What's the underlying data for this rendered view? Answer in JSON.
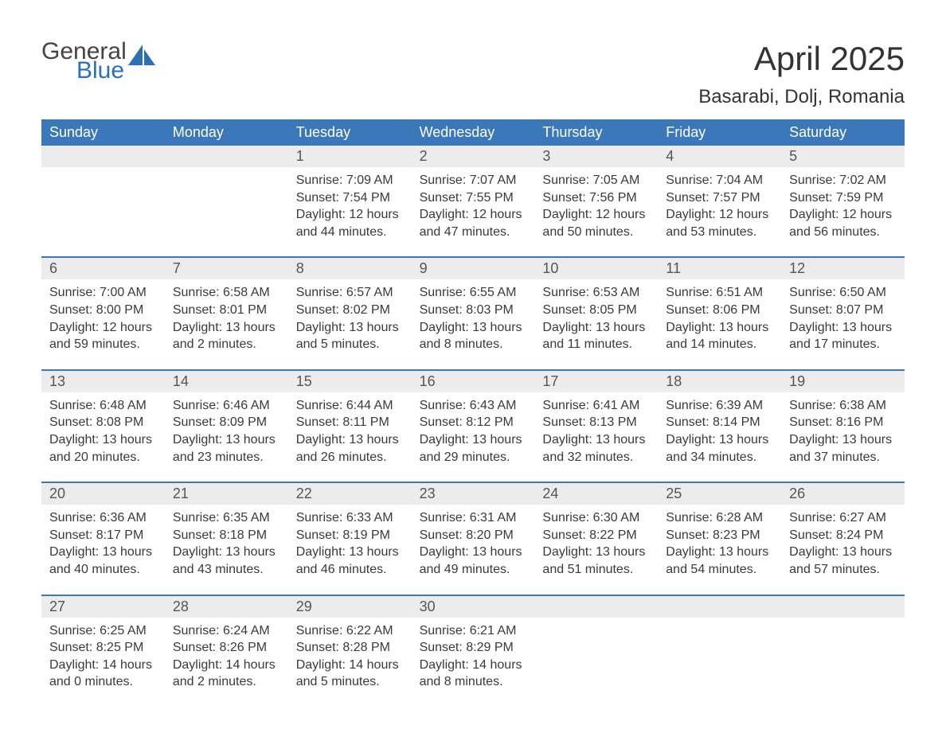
{
  "logo": {
    "general": "General",
    "blue": "Blue"
  },
  "title": "April 2025",
  "location": "Basarabi, Dolj, Romania",
  "colors": {
    "header_bg": "#3a78b9",
    "header_text": "#ffffff",
    "date_row_bg": "#ececec",
    "body_text": "#3a3a3a",
    "accent": "#2d6fb5",
    "page_bg": "#ffffff"
  },
  "day_labels": [
    "Sunday",
    "Monday",
    "Tuesday",
    "Wednesday",
    "Thursday",
    "Friday",
    "Saturday"
  ],
  "weeks": [
    [
      {
        "date": "",
        "sunrise": "",
        "sunset": "",
        "daylight1": "",
        "daylight2": ""
      },
      {
        "date": "",
        "sunrise": "",
        "sunset": "",
        "daylight1": "",
        "daylight2": ""
      },
      {
        "date": "1",
        "sunrise": "Sunrise: 7:09 AM",
        "sunset": "Sunset: 7:54 PM",
        "daylight1": "Daylight: 12 hours",
        "daylight2": "and 44 minutes."
      },
      {
        "date": "2",
        "sunrise": "Sunrise: 7:07 AM",
        "sunset": "Sunset: 7:55 PM",
        "daylight1": "Daylight: 12 hours",
        "daylight2": "and 47 minutes."
      },
      {
        "date": "3",
        "sunrise": "Sunrise: 7:05 AM",
        "sunset": "Sunset: 7:56 PM",
        "daylight1": "Daylight: 12 hours",
        "daylight2": "and 50 minutes."
      },
      {
        "date": "4",
        "sunrise": "Sunrise: 7:04 AM",
        "sunset": "Sunset: 7:57 PM",
        "daylight1": "Daylight: 12 hours",
        "daylight2": "and 53 minutes."
      },
      {
        "date": "5",
        "sunrise": "Sunrise: 7:02 AM",
        "sunset": "Sunset: 7:59 PM",
        "daylight1": "Daylight: 12 hours",
        "daylight2": "and 56 minutes."
      }
    ],
    [
      {
        "date": "6",
        "sunrise": "Sunrise: 7:00 AM",
        "sunset": "Sunset: 8:00 PM",
        "daylight1": "Daylight: 12 hours",
        "daylight2": "and 59 minutes."
      },
      {
        "date": "7",
        "sunrise": "Sunrise: 6:58 AM",
        "sunset": "Sunset: 8:01 PM",
        "daylight1": "Daylight: 13 hours",
        "daylight2": "and 2 minutes."
      },
      {
        "date": "8",
        "sunrise": "Sunrise: 6:57 AM",
        "sunset": "Sunset: 8:02 PM",
        "daylight1": "Daylight: 13 hours",
        "daylight2": "and 5 minutes."
      },
      {
        "date": "9",
        "sunrise": "Sunrise: 6:55 AM",
        "sunset": "Sunset: 8:03 PM",
        "daylight1": "Daylight: 13 hours",
        "daylight2": "and 8 minutes."
      },
      {
        "date": "10",
        "sunrise": "Sunrise: 6:53 AM",
        "sunset": "Sunset: 8:05 PM",
        "daylight1": "Daylight: 13 hours",
        "daylight2": "and 11 minutes."
      },
      {
        "date": "11",
        "sunrise": "Sunrise: 6:51 AM",
        "sunset": "Sunset: 8:06 PM",
        "daylight1": "Daylight: 13 hours",
        "daylight2": "and 14 minutes."
      },
      {
        "date": "12",
        "sunrise": "Sunrise: 6:50 AM",
        "sunset": "Sunset: 8:07 PM",
        "daylight1": "Daylight: 13 hours",
        "daylight2": "and 17 minutes."
      }
    ],
    [
      {
        "date": "13",
        "sunrise": "Sunrise: 6:48 AM",
        "sunset": "Sunset: 8:08 PM",
        "daylight1": "Daylight: 13 hours",
        "daylight2": "and 20 minutes."
      },
      {
        "date": "14",
        "sunrise": "Sunrise: 6:46 AM",
        "sunset": "Sunset: 8:09 PM",
        "daylight1": "Daylight: 13 hours",
        "daylight2": "and 23 minutes."
      },
      {
        "date": "15",
        "sunrise": "Sunrise: 6:44 AM",
        "sunset": "Sunset: 8:11 PM",
        "daylight1": "Daylight: 13 hours",
        "daylight2": "and 26 minutes."
      },
      {
        "date": "16",
        "sunrise": "Sunrise: 6:43 AM",
        "sunset": "Sunset: 8:12 PM",
        "daylight1": "Daylight: 13 hours",
        "daylight2": "and 29 minutes."
      },
      {
        "date": "17",
        "sunrise": "Sunrise: 6:41 AM",
        "sunset": "Sunset: 8:13 PM",
        "daylight1": "Daylight: 13 hours",
        "daylight2": "and 32 minutes."
      },
      {
        "date": "18",
        "sunrise": "Sunrise: 6:39 AM",
        "sunset": "Sunset: 8:14 PM",
        "daylight1": "Daylight: 13 hours",
        "daylight2": "and 34 minutes."
      },
      {
        "date": "19",
        "sunrise": "Sunrise: 6:38 AM",
        "sunset": "Sunset: 8:16 PM",
        "daylight1": "Daylight: 13 hours",
        "daylight2": "and 37 minutes."
      }
    ],
    [
      {
        "date": "20",
        "sunrise": "Sunrise: 6:36 AM",
        "sunset": "Sunset: 8:17 PM",
        "daylight1": "Daylight: 13 hours",
        "daylight2": "and 40 minutes."
      },
      {
        "date": "21",
        "sunrise": "Sunrise: 6:35 AM",
        "sunset": "Sunset: 8:18 PM",
        "daylight1": "Daylight: 13 hours",
        "daylight2": "and 43 minutes."
      },
      {
        "date": "22",
        "sunrise": "Sunrise: 6:33 AM",
        "sunset": "Sunset: 8:19 PM",
        "daylight1": "Daylight: 13 hours",
        "daylight2": "and 46 minutes."
      },
      {
        "date": "23",
        "sunrise": "Sunrise: 6:31 AM",
        "sunset": "Sunset: 8:20 PM",
        "daylight1": "Daylight: 13 hours",
        "daylight2": "and 49 minutes."
      },
      {
        "date": "24",
        "sunrise": "Sunrise: 6:30 AM",
        "sunset": "Sunset: 8:22 PM",
        "daylight1": "Daylight: 13 hours",
        "daylight2": "and 51 minutes."
      },
      {
        "date": "25",
        "sunrise": "Sunrise: 6:28 AM",
        "sunset": "Sunset: 8:23 PM",
        "daylight1": "Daylight: 13 hours",
        "daylight2": "and 54 minutes."
      },
      {
        "date": "26",
        "sunrise": "Sunrise: 6:27 AM",
        "sunset": "Sunset: 8:24 PM",
        "daylight1": "Daylight: 13 hours",
        "daylight2": "and 57 minutes."
      }
    ],
    [
      {
        "date": "27",
        "sunrise": "Sunrise: 6:25 AM",
        "sunset": "Sunset: 8:25 PM",
        "daylight1": "Daylight: 14 hours",
        "daylight2": "and 0 minutes."
      },
      {
        "date": "28",
        "sunrise": "Sunrise: 6:24 AM",
        "sunset": "Sunset: 8:26 PM",
        "daylight1": "Daylight: 14 hours",
        "daylight2": "and 2 minutes."
      },
      {
        "date": "29",
        "sunrise": "Sunrise: 6:22 AM",
        "sunset": "Sunset: 8:28 PM",
        "daylight1": "Daylight: 14 hours",
        "daylight2": "and 5 minutes."
      },
      {
        "date": "30",
        "sunrise": "Sunrise: 6:21 AM",
        "sunset": "Sunset: 8:29 PM",
        "daylight1": "Daylight: 14 hours",
        "daylight2": "and 8 minutes."
      },
      {
        "date": "",
        "sunrise": "",
        "sunset": "",
        "daylight1": "",
        "daylight2": ""
      },
      {
        "date": "",
        "sunrise": "",
        "sunset": "",
        "daylight1": "",
        "daylight2": ""
      },
      {
        "date": "",
        "sunrise": "",
        "sunset": "",
        "daylight1": "",
        "daylight2": ""
      }
    ]
  ]
}
